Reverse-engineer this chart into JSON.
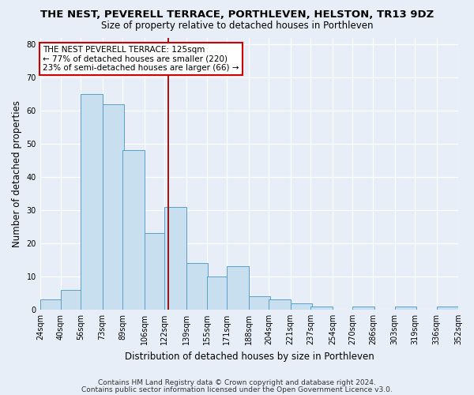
{
  "title": "THE NEST, PEVERELL TERRACE, PORTHLEVEN, HELSTON, TR13 9DZ",
  "subtitle": "Size of property relative to detached houses in Porthleven",
  "xlabel": "Distribution of detached houses by size in Porthleven",
  "ylabel": "Number of detached properties",
  "bar_left_edges": [
    24,
    40,
    56,
    73,
    89,
    106,
    122,
    139,
    155,
    171,
    188,
    204,
    221,
    237,
    254,
    270,
    286,
    303,
    319,
    336
  ],
  "bar_heights": [
    3,
    6,
    65,
    62,
    48,
    23,
    31,
    14,
    10,
    13,
    4,
    3,
    2,
    1,
    0,
    1,
    0,
    1,
    0,
    1
  ],
  "bin_width": 17,
  "bar_color": "#c8dff0",
  "bar_edge_color": "#5a9ec8",
  "tick_labels": [
    "24sqm",
    "40sqm",
    "56sqm",
    "73sqm",
    "89sqm",
    "106sqm",
    "122sqm",
    "139sqm",
    "155sqm",
    "171sqm",
    "188sqm",
    "204sqm",
    "221sqm",
    "237sqm",
    "254sqm",
    "270sqm",
    "286sqm",
    "303sqm",
    "319sqm",
    "336sqm",
    "352sqm"
  ],
  "property_line_x": 125,
  "property_line_color": "#990000",
  "annotation_title": "THE NEST PEVERELL TERRACE: 125sqm",
  "annotation_line1": "← 77% of detached houses are smaller (220)",
  "annotation_line2": "23% of semi-detached houses are larger (66) →",
  "annotation_box_color": "#ffffff",
  "annotation_box_edge": "#cc0000",
  "ylim": [
    0,
    82
  ],
  "yticks": [
    0,
    10,
    20,
    30,
    40,
    50,
    60,
    70,
    80
  ],
  "footer1": "Contains HM Land Registry data © Crown copyright and database right 2024.",
  "footer2": "Contains public sector information licensed under the Open Government Licence v3.0.",
  "background_color": "#e8eef8",
  "plot_background_color": "#e8eef8",
  "grid_color": "#ffffff",
  "title_fontsize": 9.5,
  "subtitle_fontsize": 8.5,
  "axis_label_fontsize": 8.5,
  "tick_fontsize": 7,
  "footer_fontsize": 6.5,
  "annotation_fontsize": 7.5
}
